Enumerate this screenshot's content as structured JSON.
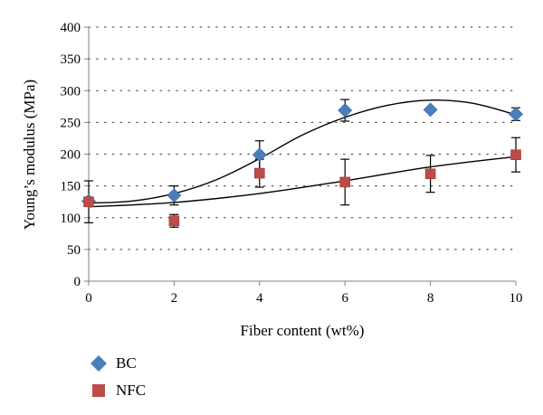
{
  "chart_data": {
    "type": "scatter",
    "title": "",
    "xlabel": "Fiber content (wt%)",
    "ylabel": "Young’s modulus (MPa)",
    "xlim": [
      0,
      10
    ],
    "ylim": [
      0,
      400
    ],
    "xticks": [
      0,
      2,
      4,
      6,
      8,
      10
    ],
    "yticks": [
      0,
      50,
      100,
      150,
      200,
      250,
      300,
      350,
      400
    ],
    "grid": "horizontal dotted",
    "legend_position": "bottom-left",
    "series": [
      {
        "name": "BC",
        "marker": "diamond",
        "color": "#4a7ebb",
        "x": [
          0,
          2,
          4,
          6,
          8,
          10
        ],
        "y": [
          126,
          135,
          199,
          269,
          270,
          263
        ],
        "error": [
          null,
          15,
          22,
          17,
          null,
          10
        ],
        "trendline": {
          "x": [
            0,
            1,
            2,
            3,
            4,
            5,
            6,
            7,
            8,
            9,
            10
          ],
          "y": [
            123,
            126,
            138,
            160,
            193,
            230,
            258,
            277,
            285,
            280,
            262
          ]
        }
      },
      {
        "name": "NFC",
        "marker": "square",
        "color": "#be4b48",
        "x": [
          0,
          2,
          4,
          6,
          8,
          10
        ],
        "y": [
          125,
          95,
          170,
          156,
          169,
          199
        ],
        "error": [
          33,
          10,
          22,
          36,
          29,
          27
        ],
        "trendline": {
          "x": [
            0,
            2,
            4,
            6,
            8,
            10
          ],
          "y": [
            117,
            124,
            138,
            158,
            180,
            196
          ]
        }
      }
    ]
  }
}
